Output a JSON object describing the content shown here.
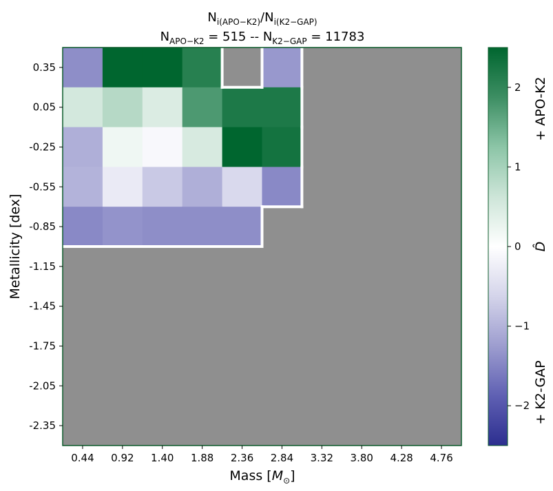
{
  "chart_data": {
    "type": "heatmap",
    "title": {
      "line1": {
        "n": "N",
        "sub1": "i(APO−K2)",
        "sep": "/",
        "n2": "N",
        "sub2": "i(K2−GAP)"
      },
      "line2": {
        "n1": "N",
        "sub1": "APO−K2",
        "mid": " = 515 -- ",
        "n2": "N",
        "sub2": "K2−GAP",
        "end": " = 11783"
      }
    },
    "xlabel": {
      "text": "Mass [",
      "symbol": "M",
      "sub": "⊙",
      "close": "]"
    },
    "ylabel": "Metallicity [dex]",
    "x_ticks": [
      "0.44",
      "0.92",
      "1.40",
      "1.88",
      "2.36",
      "2.84",
      "3.32",
      "3.80",
      "4.28",
      "4.76"
    ],
    "y_ticks": [
      "0.35",
      "0.05",
      "-0.25",
      "-0.55",
      "-0.85",
      "-1.15",
      "-1.45",
      "-1.75",
      "-2.05",
      "-2.35"
    ],
    "missing_color": "#8f8f8f",
    "values": [
      [
        -1.4,
        2.5,
        2.5,
        2.1,
        null,
        -1.3,
        null,
        null,
        null,
        null
      ],
      [
        0.55,
        0.85,
        0.45,
        1.75,
        2.2,
        2.2,
        null,
        null,
        null,
        null
      ],
      [
        -1.05,
        0.2,
        -0.1,
        0.5,
        2.5,
        2.3,
        null,
        null,
        null,
        null
      ],
      [
        -1.0,
        -0.3,
        -0.75,
        -1.05,
        -0.55,
        -1.45,
        null,
        null,
        null,
        null
      ],
      [
        -1.45,
        -1.35,
        -1.4,
        -1.4,
        -1.4,
        null,
        null,
        null,
        null,
        null
      ],
      [
        null,
        null,
        null,
        null,
        null,
        null,
        null,
        null,
        null,
        null
      ],
      [
        null,
        null,
        null,
        null,
        null,
        null,
        null,
        null,
        null,
        null
      ],
      [
        null,
        null,
        null,
        null,
        null,
        null,
        null,
        null,
        null,
        null
      ],
      [
        null,
        null,
        null,
        null,
        null,
        null,
        null,
        null,
        null,
        null
      ],
      [
        null,
        null,
        null,
        null,
        null,
        null,
        null,
        null,
        null,
        null
      ]
    ],
    "colorbar": {
      "range": [
        -2.5,
        2.5
      ],
      "ticks": [
        "−2",
        "−1",
        "0",
        "1",
        "2"
      ],
      "tick_values": [
        -2,
        -1,
        0,
        1,
        2
      ],
      "stops": [
        "#2c2e8f",
        "#5f60b3",
        "#9d9dcf",
        "#d4d4ea",
        "#ffffff",
        "#cde5d8",
        "#8cc5a7",
        "#3d8e63",
        "#00662f"
      ],
      "label": "D̂",
      "top_label": "+ APO-K2",
      "bottom_label": "+ K2-GAP"
    }
  }
}
